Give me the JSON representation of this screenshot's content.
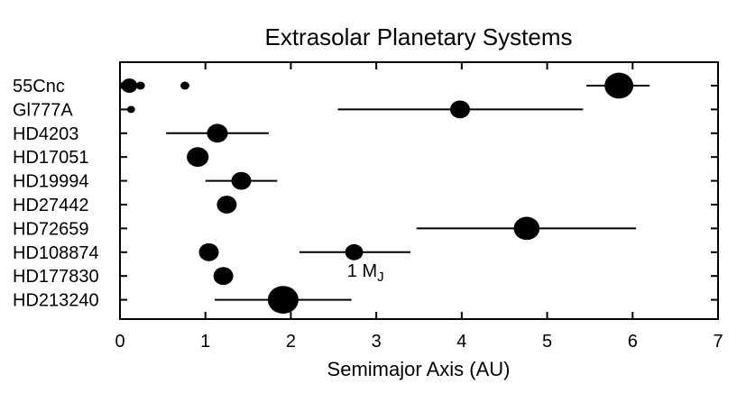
{
  "chart_data": {
    "type": "scatter",
    "title": "Extrasolar Planetary Systems",
    "xlabel": "Semimajor Axis (AU)",
    "ylabel": "",
    "xlim": [
      0,
      7
    ],
    "xticks": [
      "0",
      "1",
      "2",
      "3",
      "4",
      "5",
      "6",
      "7"
    ],
    "grid": false,
    "annotation": {
      "text": "1 M",
      "subscript": "J",
      "x": 2.88,
      "row": 7
    },
    "systems": [
      {
        "name": "55Cnc",
        "planets": [
          {
            "a": 0.05,
            "size": 0.45
          },
          {
            "a": 0.11,
            "size": 0.8
          },
          {
            "a": 0.24,
            "size": 0.45
          },
          {
            "a": 0.76,
            "size": 0.45
          },
          {
            "a": 5.84,
            "size": 1.45,
            "err": [
              5.46,
              6.2
            ]
          }
        ]
      },
      {
        "name": "Gl777A",
        "planets": [
          {
            "a": 0.13,
            "size": 0.4
          },
          {
            "a": 3.98,
            "size": 1.0,
            "err": [
              2.55,
              5.42
            ]
          }
        ]
      },
      {
        "name": "HD4203",
        "planets": [
          {
            "a": 1.14,
            "size": 1.05,
            "err": [
              0.54,
              1.74
            ]
          }
        ]
      },
      {
        "name": "HD17051",
        "planets": [
          {
            "a": 0.91,
            "size": 1.1
          }
        ]
      },
      {
        "name": "HD19994",
        "planets": [
          {
            "a": 1.42,
            "size": 1.0,
            "err": [
              1.0,
              1.84
            ]
          }
        ]
      },
      {
        "name": "HD27442",
        "planets": [
          {
            "a": 1.25,
            "size": 1.0
          }
        ]
      },
      {
        "name": "HD72659",
        "planets": [
          {
            "a": 4.76,
            "size": 1.3,
            "err": [
              3.47,
              6.04
            ]
          }
        ]
      },
      {
        "name": "HD108874",
        "planets": [
          {
            "a": 1.04,
            "size": 1.0
          },
          {
            "a": 2.74,
            "size": 0.9,
            "err": [
              2.1,
              3.4
            ]
          }
        ]
      },
      {
        "name": "HD177830",
        "planets": [
          {
            "a": 1.21,
            "size": 1.0
          }
        ]
      },
      {
        "name": "HD213240",
        "planets": [
          {
            "a": 1.91,
            "size": 1.55,
            "err": [
              1.11,
              2.71
            ]
          }
        ]
      }
    ]
  }
}
